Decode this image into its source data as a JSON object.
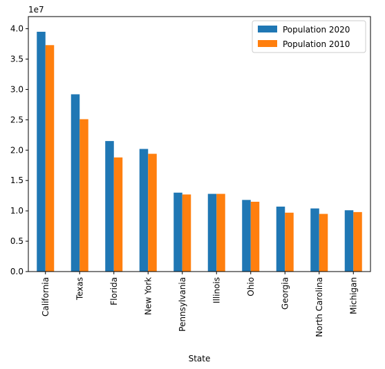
{
  "chart_data": {
    "type": "bar",
    "title": "",
    "xlabel": "State",
    "ylabel": "",
    "y_offset_label": "1e7",
    "ylim": [
      0,
      4.2
    ],
    "y_ticks": [
      0.0,
      0.5,
      1.0,
      1.5,
      2.0,
      2.5,
      3.0,
      3.5,
      4.0
    ],
    "y_tick_labels": [
      "0.0",
      "0.5",
      "1.0",
      "1.5",
      "2.0",
      "2.5",
      "3.0",
      "3.5",
      "4.0"
    ],
    "grid": false,
    "legend_position": "top-right",
    "categories": [
      "California",
      "Texas",
      "Florida",
      "New York",
      "Pennsylvania",
      "Illinois",
      "Ohio",
      "Georgia",
      "North Carolina",
      "Michigan"
    ],
    "series": [
      {
        "name": "Population 2020",
        "color": "#1f77b4",
        "values": [
          3.95,
          2.92,
          2.15,
          2.02,
          1.3,
          1.28,
          1.18,
          1.07,
          1.04,
          1.01
        ]
      },
      {
        "name": "Population 2010",
        "color": "#ff7f0e",
        "values": [
          3.73,
          2.51,
          1.88,
          1.94,
          1.27,
          1.28,
          1.15,
          0.97,
          0.95,
          0.98
        ]
      }
    ]
  }
}
